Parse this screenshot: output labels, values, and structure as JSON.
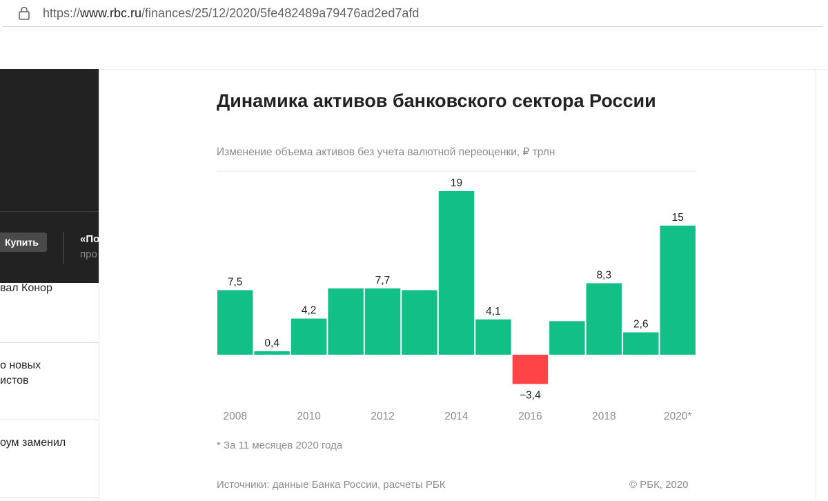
{
  "browser": {
    "url_prefix": "https://",
    "url_host": "www.rbc.ru",
    "url_path": "/finances/25/12/2020/5fe482489a79476ad2ed7afd",
    "lock_icon": "lock-icon"
  },
  "sidebar": {
    "buy_label": "Купить",
    "promo_title": "«По",
    "promo_sub": "про",
    "news": [
      {
        "lines": [
          "вал Конор"
        ]
      },
      {
        "lines": [
          "о новых",
          "истов"
        ]
      },
      {
        "lines": [
          "оум заменил"
        ]
      }
    ]
  },
  "chart_data": {
    "type": "bar",
    "title": "Динамика активов банковского сектора России",
    "subtitle": "Изменение объема активов без учета валютной переоценки, ₽ трлн",
    "categories": [
      "2008",
      "2009",
      "2010",
      "2011",
      "2012",
      "2013",
      "2014",
      "2015",
      "2016",
      "2017",
      "2018",
      "2019",
      "2020*"
    ],
    "values": [
      7.5,
      0.4,
      4.2,
      7.7,
      7.7,
      7.5,
      19,
      4.1,
      -3.4,
      3.9,
      8.3,
      2.6,
      15
    ],
    "value_labels": [
      "7,5",
      "0,4",
      "4,2",
      "",
      "7,7",
      "",
      "19",
      "4,1",
      "−3,4",
      "",
      "8,3",
      "2,6",
      "15"
    ],
    "x_tick_labels": [
      "2008",
      "",
      "2010",
      "",
      "2012",
      "",
      "2014",
      "",
      "2016",
      "",
      "2018",
      "",
      "2020*"
    ],
    "ylim": [
      -3.4,
      19
    ],
    "colors": {
      "positive": "#12bf87",
      "negative": "#ff4448"
    },
    "footnote": "* За 11 месяцев 2020 года",
    "source": "Источники: данные Банка России, расчеты РБК",
    "copyright": "© РБК, 2020"
  }
}
